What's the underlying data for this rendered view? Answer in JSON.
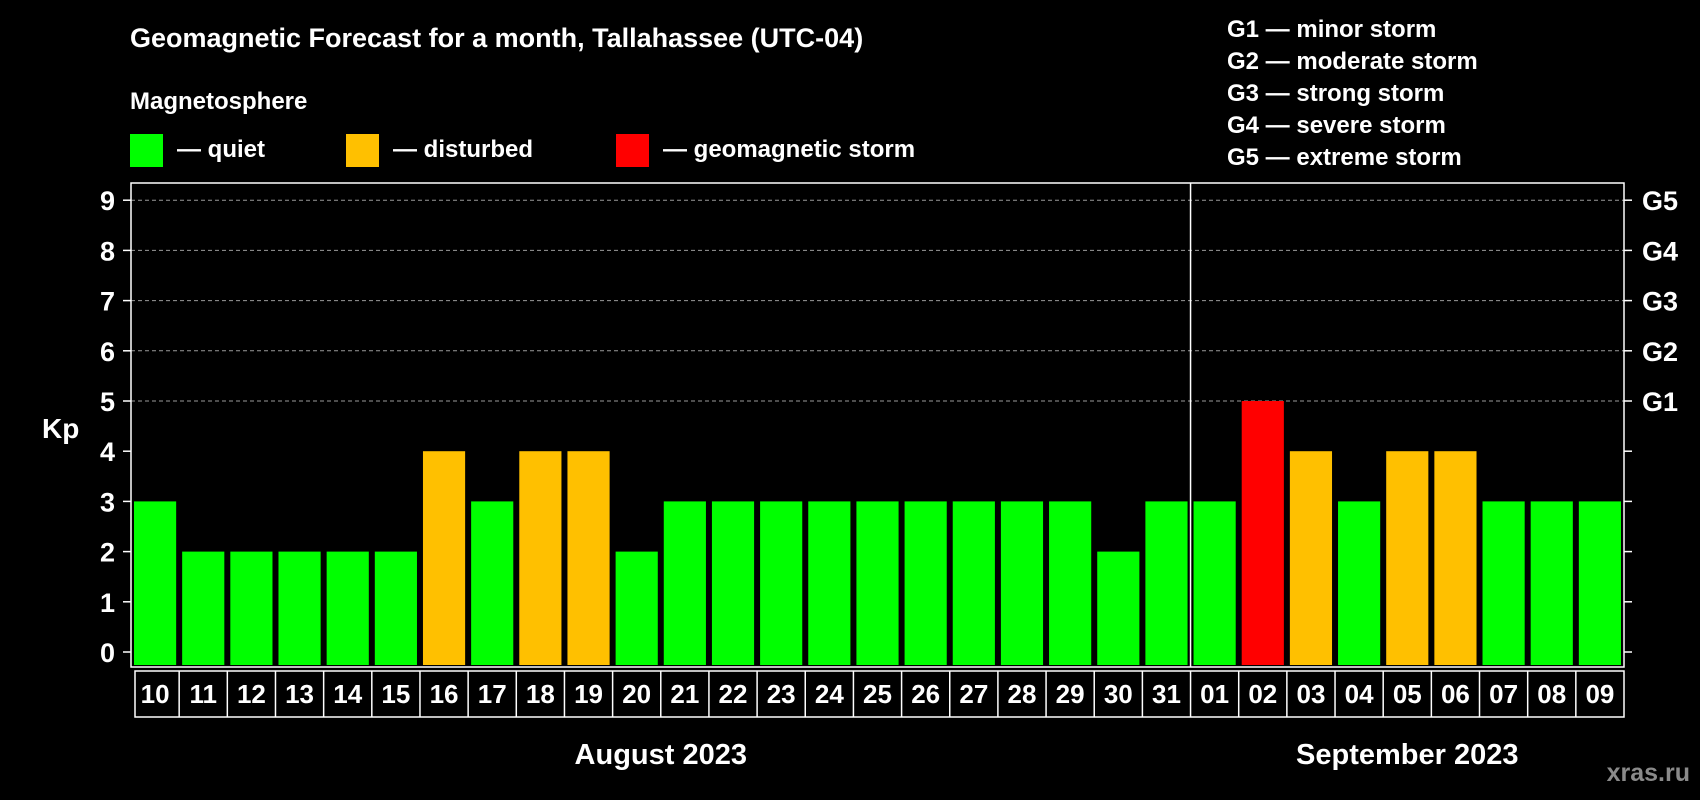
{
  "chart_data": {
    "type": "bar",
    "title": "Geomagnetic Forecast for a month, Tallahassee (UTC-04)",
    "legend": {
      "heading": "Magnetosphere",
      "items": [
        {
          "label": "— quiet",
          "color": "#00ff00"
        },
        {
          "label": "— disturbed",
          "color": "#ffc000"
        },
        {
          "label": "— geomagnetic storm",
          "color": "#ff0000"
        }
      ]
    },
    "storm_scale": [
      "G1 — minor storm",
      "G2 — moderate storm",
      "G3 — strong storm",
      "G4 — severe storm",
      "G5 — extreme storm"
    ],
    "ylabel": "Kp",
    "ylim": [
      0,
      9
    ],
    "yticks": [
      "0",
      "1",
      "2",
      "3",
      "4",
      "5",
      "6",
      "7",
      "8",
      "9"
    ],
    "right_labels": [
      {
        "kp": 5,
        "label": "G1"
      },
      {
        "kp": 6,
        "label": "G2"
      },
      {
        "kp": 7,
        "label": "G3"
      },
      {
        "kp": 8,
        "label": "G4"
      },
      {
        "kp": 9,
        "label": "G5"
      }
    ],
    "categories": [
      "10",
      "11",
      "12",
      "13",
      "14",
      "15",
      "16",
      "17",
      "18",
      "19",
      "20",
      "21",
      "22",
      "23",
      "24",
      "25",
      "26",
      "27",
      "28",
      "29",
      "30",
      "31",
      "01",
      "02",
      "03",
      "04",
      "05",
      "06",
      "07",
      "08",
      "09"
    ],
    "values": [
      3,
      2,
      2,
      2,
      2,
      2,
      4,
      3,
      4,
      4,
      2,
      3,
      3,
      3,
      3,
      3,
      3,
      3,
      3,
      3,
      2,
      3,
      3,
      5,
      4,
      3,
      4,
      4,
      3,
      3,
      3
    ],
    "months": [
      {
        "label": "August 2023",
        "start_index": 0,
        "end_index": 21
      },
      {
        "label": "September 2023",
        "start_index": 22,
        "end_index": 30
      }
    ],
    "color_thresholds": {
      "quiet_max": 3,
      "disturbed": 4,
      "storm_min": 5
    },
    "grid": "dashed above Kp 5"
  },
  "watermark": "xras.ru"
}
